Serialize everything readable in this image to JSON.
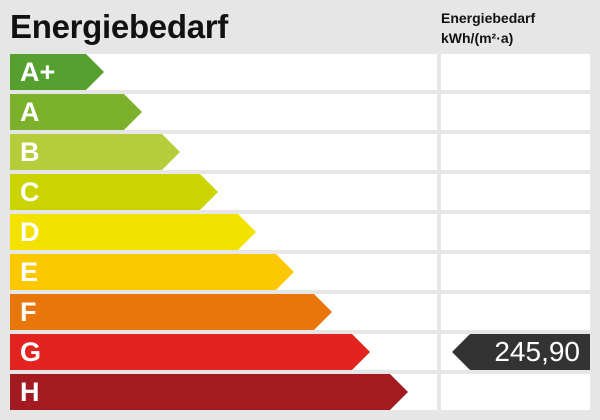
{
  "title": "Energiebedarf",
  "column_header": {
    "line1": "Energiebedarf",
    "line2": "kWh/(m²·a)"
  },
  "classes": [
    {
      "label": "A+",
      "color": "#56a030"
    },
    {
      "label": "A",
      "color": "#7cb12b"
    },
    {
      "label": "B",
      "color": "#b5cd3a"
    },
    {
      "label": "C",
      "color": "#cbd400"
    },
    {
      "label": "D",
      "color": "#f3e100"
    },
    {
      "label": "E",
      "color": "#fcc800"
    },
    {
      "label": "F",
      "color": "#e9760a"
    },
    {
      "label": "G",
      "color": "#e2231f"
    },
    {
      "label": "H",
      "color": "#a31a21"
    }
  ],
  "value": {
    "text": "245,90",
    "class": "G",
    "color": "#333333"
  }
}
